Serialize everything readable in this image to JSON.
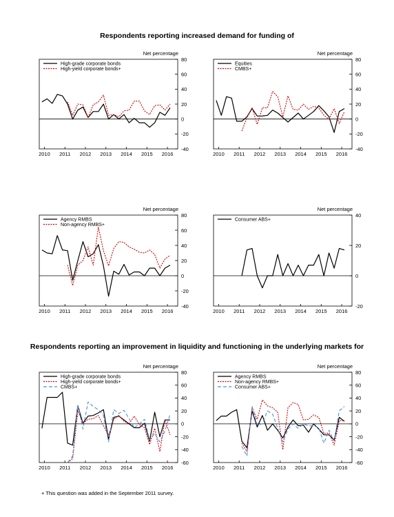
{
  "titles": {
    "demand": "Respondents reporting increased demand for funding of",
    "liquidity": "Respondents reporting an improvement in liquidity and functioning in the underlying markets for"
  },
  "footnote": "+ This question was added in the September 2011 survey.",
  "colors": {
    "black": "#000000",
    "red": "#cc0000",
    "blue": "#4f8fd6"
  },
  "chart_data": [
    {
      "type": "line",
      "ylabel": "Net percentage",
      "ylim": [
        -40,
        80
      ],
      "yticks": [
        -40,
        -20,
        0,
        20,
        40,
        60,
        80
      ],
      "xlim": [
        2009.75,
        2016.5
      ],
      "xticks": [
        2010,
        2011,
        2012,
        2013,
        2014,
        2015,
        2016
      ],
      "legend_position": "top-left",
      "series": [
        {
          "name": "High-grade corporate bonds",
          "color": "black",
          "dash": "solid",
          "x": [
            2009.88,
            2010.13,
            2010.38,
            2010.63,
            2010.88,
            2011.13,
            2011.38,
            2011.63,
            2011.88,
            2012.13,
            2012.38,
            2012.63,
            2012.88,
            2013.13,
            2013.38,
            2013.63,
            2013.88,
            2014.13,
            2014.38,
            2014.63,
            2014.88,
            2015.13,
            2015.38,
            2015.63,
            2015.88,
            2016.13
          ],
          "y": [
            23,
            27,
            21,
            33,
            31,
            20,
            0,
            12,
            16,
            2,
            10,
            10,
            20,
            0,
            6,
            0,
            6,
            -5,
            1,
            -5,
            -5,
            -11,
            -5,
            9,
            5,
            15
          ]
        },
        {
          "name": "High-yield corporate bonds+",
          "color": "red",
          "dash": "dotted",
          "x": [
            2011.13,
            2011.38,
            2011.63,
            2011.88,
            2012.13,
            2012.38,
            2012.63,
            2012.88,
            2013.13,
            2013.38,
            2013.63,
            2013.88,
            2014.13,
            2014.38,
            2014.63,
            2014.88,
            2015.13,
            2015.38,
            2015.63,
            2015.88,
            2016.13
          ],
          "y": [
            23,
            5,
            20,
            19,
            2,
            19,
            23,
            32,
            5,
            6,
            3,
            11,
            12,
            24,
            24,
            11,
            6,
            18,
            19,
            12,
            20
          ]
        }
      ]
    },
    {
      "type": "line",
      "ylabel": "Net percentage",
      "ylim": [
        -40,
        80
      ],
      "yticks": [
        -40,
        -20,
        0,
        20,
        40,
        60,
        80
      ],
      "xlim": [
        2009.75,
        2016.5
      ],
      "xticks": [
        2010,
        2011,
        2012,
        2013,
        2014,
        2015,
        2016
      ],
      "legend_position": "top-left",
      "series": [
        {
          "name": "Equities",
          "color": "black",
          "dash": "solid",
          "x": [
            2009.88,
            2010.13,
            2010.38,
            2010.63,
            2010.88,
            2011.13,
            2011.38,
            2011.63,
            2011.88,
            2012.13,
            2012.38,
            2012.63,
            2012.88,
            2013.13,
            2013.38,
            2013.63,
            2013.88,
            2014.13,
            2014.38,
            2014.63,
            2014.88,
            2015.13,
            2015.38,
            2015.63,
            2015.88,
            2016.13
          ],
          "y": [
            25,
            5,
            30,
            28,
            -3,
            -3,
            3,
            14,
            4,
            4,
            5,
            12,
            8,
            2,
            -4,
            2,
            8,
            0,
            5,
            10,
            18,
            11,
            3,
            -18,
            10,
            14
          ]
        },
        {
          "name": "CMBS+",
          "color": "red",
          "dash": "dotted",
          "x": [
            2011.13,
            2011.38,
            2011.63,
            2011.88,
            2012.13,
            2012.38,
            2012.63,
            2012.88,
            2013.13,
            2013.38,
            2013.63,
            2013.88,
            2014.13,
            2014.38,
            2014.63,
            2014.88,
            2015.13,
            2015.38,
            2015.63,
            2015.88,
            2016.13
          ],
          "y": [
            -16,
            2,
            15,
            -7,
            15,
            15,
            37,
            30,
            3,
            31,
            13,
            12,
            20,
            13,
            17,
            15,
            5,
            0,
            14,
            -6,
            10
          ]
        }
      ]
    },
    {
      "type": "line",
      "ylabel": "Net percentage",
      "ylim": [
        -40,
        80
      ],
      "yticks": [
        -40,
        -20,
        0,
        20,
        40,
        60,
        80
      ],
      "xlim": [
        2009.75,
        2016.5
      ],
      "xticks": [
        2010,
        2011,
        2012,
        2013,
        2014,
        2015,
        2016
      ],
      "legend_position": "top-left",
      "series": [
        {
          "name": "Agency RMBS",
          "color": "black",
          "dash": "solid",
          "x": [
            2009.88,
            2010.13,
            2010.38,
            2010.63,
            2010.88,
            2011.13,
            2011.38,
            2011.63,
            2011.88,
            2012.13,
            2012.38,
            2012.63,
            2012.88,
            2013.13,
            2013.38,
            2013.63,
            2013.88,
            2014.13,
            2014.38,
            2014.63,
            2014.88,
            2015.13,
            2015.38,
            2015.63,
            2015.88,
            2016.13
          ],
          "y": [
            34,
            30,
            29,
            53,
            34,
            33,
            -6,
            20,
            45,
            25,
            29,
            41,
            13,
            -27,
            6,
            2,
            15,
            1,
            5,
            5,
            0,
            10,
            10,
            0,
            10,
            14
          ]
        },
        {
          "name": "Non-agency RMBS+",
          "color": "red",
          "dash": "dotted",
          "x": [
            2011.13,
            2011.38,
            2011.63,
            2011.88,
            2012.13,
            2012.38,
            2012.63,
            2012.88,
            2013.13,
            2013.38,
            2013.63,
            2013.88,
            2014.13,
            2014.38,
            2014.63,
            2014.88,
            2015.13,
            2015.38,
            2015.63,
            2015.88,
            2016.13
          ],
          "y": [
            14,
            -13,
            14,
            20,
            38,
            14,
            64,
            33,
            13,
            36,
            45,
            44,
            38,
            35,
            31,
            30,
            34,
            28,
            10,
            22,
            27
          ]
        }
      ]
    },
    {
      "type": "line",
      "ylabel": "Net percentage",
      "ylim": [
        -20,
        40
      ],
      "yticks": [
        -20,
        0,
        20,
        40
      ],
      "xlim": [
        2009.75,
        2016.5
      ],
      "xticks": [
        2010,
        2011,
        2012,
        2013,
        2014,
        2015,
        2016
      ],
      "legend_position": "top-left",
      "series": [
        {
          "name": "Consumer ABS+",
          "color": "black",
          "dash": "solid",
          "x": [
            2011.13,
            2011.38,
            2011.63,
            2011.88,
            2012.13,
            2012.38,
            2012.63,
            2012.88,
            2013.13,
            2013.38,
            2013.63,
            2013.88,
            2014.13,
            2014.38,
            2014.63,
            2014.88,
            2015.13,
            2015.38,
            2015.63,
            2015.88,
            2016.13
          ],
          "y": [
            0,
            17,
            18,
            0,
            -8,
            0,
            0,
            14,
            0,
            8,
            0,
            7,
            0,
            7,
            7,
            14,
            0,
            15,
            5,
            18,
            17
          ]
        }
      ]
    },
    {
      "type": "line",
      "ylabel": "Net percentage",
      "ylim": [
        -60,
        80
      ],
      "yticks": [
        -60,
        -40,
        -20,
        0,
        20,
        40,
        60,
        80
      ],
      "xlim": [
        2009.75,
        2016.5
      ],
      "xticks": [
        2010,
        2011,
        2012,
        2013,
        2014,
        2015,
        2016
      ],
      "legend_position": "top-left",
      "series": [
        {
          "name": "High-grade corporate bonds",
          "color": "black",
          "dash": "solid",
          "x": [
            2009.88,
            2010.13,
            2010.38,
            2010.63,
            2010.88,
            2011.13,
            2011.38,
            2011.63,
            2011.88,
            2012.13,
            2012.38,
            2012.63,
            2012.88,
            2013.13,
            2013.38,
            2013.63,
            2013.88,
            2014.13,
            2014.38,
            2014.63,
            2014.88,
            2015.13,
            2015.38,
            2015.63,
            2015.88,
            2016.13
          ],
          "y": [
            -7,
            41,
            41,
            41,
            49,
            -30,
            -33,
            28,
            1,
            12,
            13,
            17,
            22,
            -24,
            10,
            12,
            6,
            0,
            -6,
            -6,
            1,
            -27,
            18,
            -20,
            6,
            6
          ]
        },
        {
          "name": "High-yield corporate bonds+",
          "color": "red",
          "dash": "dotted",
          "x": [
            2011.13,
            2011.38,
            2011.63,
            2011.88,
            2012.13,
            2012.38,
            2012.63,
            2012.88,
            2013.13,
            2013.38,
            2013.63,
            2013.88,
            2014.13,
            2014.38,
            2014.63,
            2014.88,
            2015.13,
            2015.38,
            2015.63,
            2015.88,
            2016.13
          ],
          "y": [
            -60,
            -54,
            20,
            1,
            7,
            8,
            13,
            -3,
            -18,
            7,
            13,
            4,
            0,
            12,
            -1,
            -6,
            -32,
            -7,
            -43,
            6,
            -17
          ]
        },
        {
          "name": "CMBS+",
          "color": "blue",
          "dash": "dashed",
          "x": [
            2011.13,
            2011.38,
            2011.63,
            2011.88,
            2012.13,
            2012.38,
            2012.63,
            2012.88,
            2013.13,
            2013.38,
            2013.63,
            2013.88,
            2014.13,
            2014.38,
            2014.63,
            2014.88,
            2015.13,
            2015.38,
            2015.63,
            2015.88,
            2016.13
          ],
          "y": [
            -60,
            -50,
            30,
            -8,
            34,
            27,
            22,
            13,
            -28,
            22,
            16,
            21,
            8,
            -6,
            0,
            7,
            -25,
            -15,
            -28,
            -11,
            15
          ]
        }
      ]
    },
    {
      "type": "line",
      "ylabel": "Net percentage",
      "ylim": [
        -60,
        80
      ],
      "yticks": [
        -60,
        -40,
        -20,
        0,
        20,
        40,
        60,
        80
      ],
      "xlim": [
        2009.75,
        2016.5
      ],
      "xticks": [
        2010,
        2011,
        2012,
        2013,
        2014,
        2015,
        2016
      ],
      "legend_position": "top-left",
      "series": [
        {
          "name": "Agency RMBS",
          "color": "black",
          "dash": "solid",
          "x": [
            2009.88,
            2010.13,
            2010.38,
            2010.63,
            2010.88,
            2011.13,
            2011.38,
            2011.63,
            2011.88,
            2012.13,
            2012.38,
            2012.63,
            2012.88,
            2013.13,
            2013.38,
            2013.63,
            2013.88,
            2014.13,
            2014.38,
            2014.63,
            2014.88,
            2015.13,
            2015.38,
            2015.63,
            2015.88,
            2016.13
          ],
          "y": [
            5,
            12,
            12,
            18,
            22,
            -27,
            -37,
            20,
            -5,
            13,
            -10,
            0,
            -10,
            -22,
            -5,
            6,
            -3,
            -2,
            -13,
            0,
            -8,
            -17,
            -17,
            -25,
            10,
            4
          ]
        },
        {
          "name": "Non-agency RMBS+",
          "color": "red",
          "dash": "dotted",
          "x": [
            2011.13,
            2011.38,
            2011.63,
            2011.88,
            2012.13,
            2012.38,
            2012.63,
            2012.88,
            2013.13,
            2013.38,
            2013.63,
            2013.88,
            2014.13,
            2014.38,
            2014.63,
            2014.88,
            2015.13,
            2015.38,
            2015.63,
            2015.88,
            2016.13
          ],
          "y": [
            -30,
            -43,
            25,
            7,
            37,
            28,
            25,
            18,
            -40,
            25,
            33,
            30,
            6,
            7,
            14,
            10,
            -15,
            -14,
            -33,
            5,
            5
          ]
        },
        {
          "name": "Consumer ABS+",
          "color": "blue",
          "dash": "dashed",
          "x": [
            2011.13,
            2011.38,
            2011.63,
            2011.88,
            2012.13,
            2012.38,
            2012.63,
            2012.88,
            2013.13,
            2013.38,
            2013.63,
            2013.88,
            2014.13,
            2014.38,
            2014.63,
            2014.88,
            2015.13,
            2015.38,
            2015.63,
            2015.88,
            2016.13
          ],
          "y": [
            -35,
            -50,
            27,
            -2,
            0,
            20,
            15,
            -7,
            -28,
            -8,
            0,
            -7,
            0,
            -3,
            -3,
            -6,
            -30,
            -10,
            -27,
            20,
            27
          ]
        }
      ]
    }
  ]
}
